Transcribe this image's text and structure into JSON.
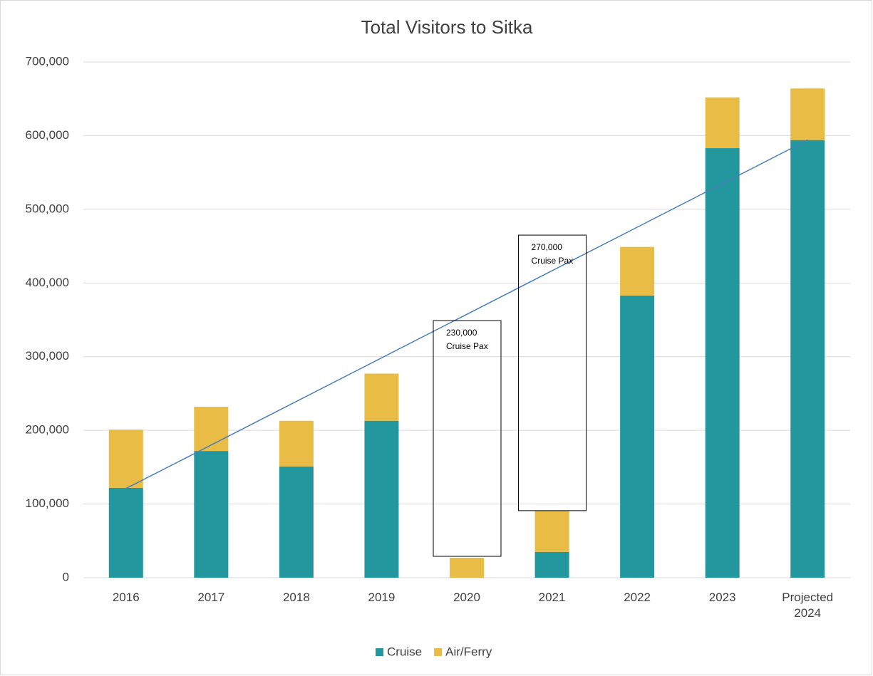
{
  "chart_data": {
    "type": "stacked_bar",
    "title": "Total Visitors to Sitka",
    "categories": [
      "2016",
      "2017",
      "2018",
      "2019",
      "2020",
      "2021",
      "2022",
      "2023",
      "Projected 2024"
    ],
    "series": [
      {
        "name": "Cruise",
        "color": "#23979e",
        "values": [
          122000,
          172000,
          151000,
          213000,
          0,
          35000,
          383000,
          583000,
          594000
        ]
      },
      {
        "name": "Air/Ferry",
        "color": "#e8bc45",
        "values": [
          79000,
          60000,
          62000,
          64000,
          27000,
          56000,
          66000,
          69000,
          70000
        ]
      }
    ],
    "ylim": [
      0,
      700000
    ],
    "yticks": [
      0,
      {
        "value": 100000,
        "label": "100,000"
      },
      {
        "value": 200000,
        "label": "200,000"
      },
      {
        "value": 300000,
        "label": "300,000"
      },
      {
        "value": 400000,
        "label": "400,000"
      },
      {
        "value": 500000,
        "label": "500,000"
      },
      {
        "value": 600000,
        "label": "600,000"
      },
      {
        "value": 700000,
        "label": "700,000"
      }
    ],
    "grid": true,
    "legend": "bottom",
    "trendline": {
      "color": "#4a7ebb",
      "start": 121000,
      "end": 594000
    },
    "annotations": [
      {
        "x": "2020",
        "text": [
          "230,000",
          "Cruise Pax"
        ],
        "range": [
          29000,
          349000
        ]
      },
      {
        "x": "2021",
        "text": [
          "270,000",
          "Cruise Pax"
        ],
        "range": [
          91000,
          465000
        ]
      }
    ]
  }
}
